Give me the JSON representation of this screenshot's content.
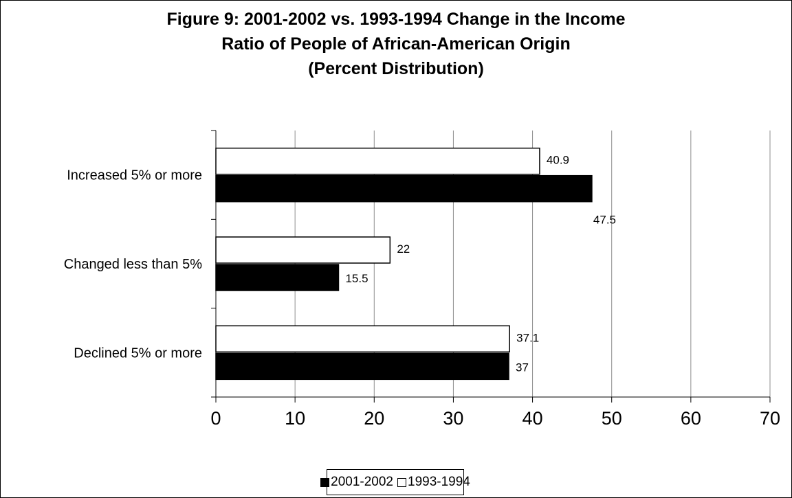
{
  "chart_data": {
    "type": "bar",
    "orientation": "horizontal",
    "title": "Figure 9: 2001-2002 vs. 1993-1994 Change in the Income Ratio of People of African-American Origin (Percent Distribution)",
    "title_lines": [
      "Figure 9: 2001-2002 vs. 1993-1994 Change in the Income",
      "Ratio of People of African-American Origin",
      "(Percent Distribution)"
    ],
    "categories": [
      "Increased 5% or more",
      "Changed less than 5%",
      "Declined 5% or more"
    ],
    "series": [
      {
        "name": "1993-1994",
        "values": [
          40.9,
          22,
          37.1
        ],
        "color": "#ffffff",
        "labels": [
          "40.9",
          "22",
          "37.1"
        ]
      },
      {
        "name": "2001-2002",
        "values": [
          47.5,
          15.5,
          37
        ],
        "color": "#000000",
        "labels": [
          "47.5",
          "15.5",
          "37"
        ]
      }
    ],
    "xlim": [
      0,
      70
    ],
    "xticks": [
      "0",
      "10",
      "20",
      "30",
      "40",
      "50",
      "60",
      "70"
    ],
    "xlabel": "",
    "ylabel": "",
    "grid": "vertical",
    "legend": {
      "position": "bottom",
      "entries": [
        {
          "label": "2001-2002",
          "color": "#000000"
        },
        {
          "label": "1993-1994",
          "color": "#ffffff"
        }
      ]
    }
  }
}
